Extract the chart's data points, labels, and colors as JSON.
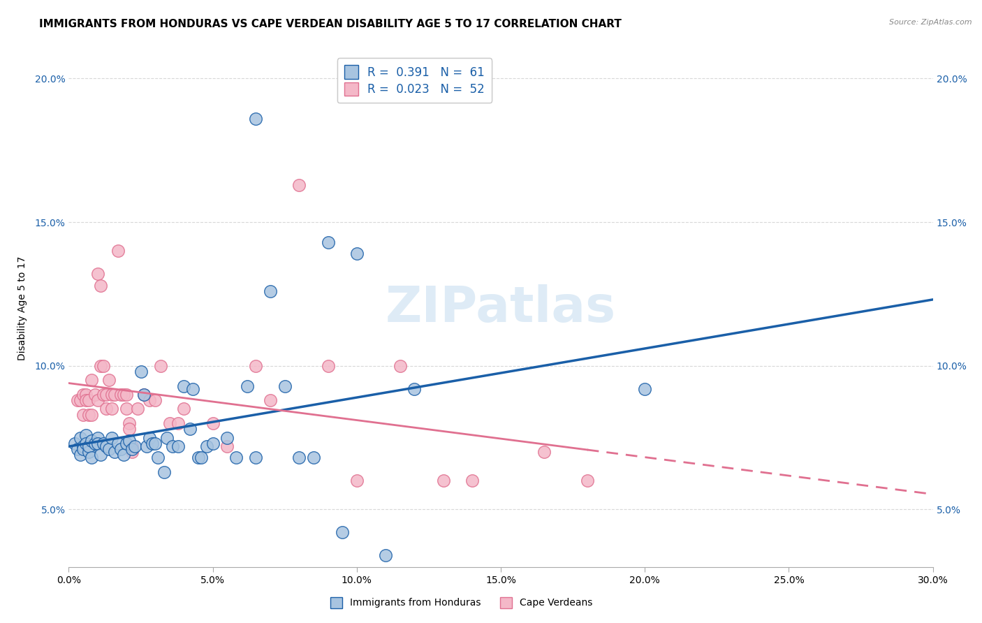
{
  "title": "IMMIGRANTS FROM HONDURAS VS CAPE VERDEAN DISABILITY AGE 5 TO 17 CORRELATION CHART",
  "source": "Source: ZipAtlas.com",
  "ylabel": "Disability Age 5 to 17",
  "xlim": [
    0.0,
    0.3
  ],
  "ylim": [
    0.03,
    0.21
  ],
  "xticks": [
    0.0,
    0.05,
    0.1,
    0.15,
    0.2,
    0.25,
    0.3
  ],
  "xticklabels": [
    "0.0%",
    "5.0%",
    "10.0%",
    "15.0%",
    "20.0%",
    "25.0%",
    "30.0%"
  ],
  "yticks": [
    0.05,
    0.1,
    0.15,
    0.2
  ],
  "yticklabels": [
    "5.0%",
    "10.0%",
    "15.0%",
    "20.0%"
  ],
  "legend1_r": "0.391",
  "legend1_n": "61",
  "legend2_r": "0.023",
  "legend2_n": "52",
  "color_honduras": "#a8c4e0",
  "color_capeverde": "#f4b8c8",
  "color_line_honduras": "#1a5fa8",
  "color_line_capeverde": "#e07090",
  "background_color": "#ffffff",
  "grid_color": "#d8d8d8",
  "watermark_color": "#c8dff0",
  "watermark": "ZIPatlas",
  "honduras_points": [
    [
      0.002,
      0.073
    ],
    [
      0.003,
      0.071
    ],
    [
      0.004,
      0.069
    ],
    [
      0.004,
      0.075
    ],
    [
      0.005,
      0.072
    ],
    [
      0.005,
      0.071
    ],
    [
      0.006,
      0.076
    ],
    [
      0.006,
      0.073
    ],
    [
      0.007,
      0.07
    ],
    [
      0.007,
      0.072
    ],
    [
      0.008,
      0.074
    ],
    [
      0.008,
      0.068
    ],
    [
      0.009,
      0.073
    ],
    [
      0.01,
      0.075
    ],
    [
      0.01,
      0.073
    ],
    [
      0.011,
      0.069
    ],
    [
      0.012,
      0.073
    ],
    [
      0.013,
      0.072
    ],
    [
      0.014,
      0.071
    ],
    [
      0.015,
      0.075
    ],
    [
      0.016,
      0.07
    ],
    [
      0.017,
      0.073
    ],
    [
      0.018,
      0.071
    ],
    [
      0.019,
      0.069
    ],
    [
      0.02,
      0.073
    ],
    [
      0.021,
      0.074
    ],
    [
      0.022,
      0.071
    ],
    [
      0.023,
      0.072
    ],
    [
      0.025,
      0.098
    ],
    [
      0.026,
      0.09
    ],
    [
      0.027,
      0.072
    ],
    [
      0.028,
      0.075
    ],
    [
      0.029,
      0.073
    ],
    [
      0.03,
      0.073
    ],
    [
      0.031,
      0.068
    ],
    [
      0.033,
      0.063
    ],
    [
      0.034,
      0.075
    ],
    [
      0.036,
      0.072
    ],
    [
      0.038,
      0.072
    ],
    [
      0.04,
      0.093
    ],
    [
      0.042,
      0.078
    ],
    [
      0.043,
      0.092
    ],
    [
      0.045,
      0.068
    ],
    [
      0.046,
      0.068
    ],
    [
      0.048,
      0.072
    ],
    [
      0.05,
      0.073
    ],
    [
      0.055,
      0.075
    ],
    [
      0.058,
      0.068
    ],
    [
      0.062,
      0.093
    ],
    [
      0.065,
      0.068
    ],
    [
      0.07,
      0.126
    ],
    [
      0.075,
      0.093
    ],
    [
      0.08,
      0.068
    ],
    [
      0.085,
      0.068
    ],
    [
      0.09,
      0.143
    ],
    [
      0.095,
      0.042
    ],
    [
      0.1,
      0.139
    ],
    [
      0.11,
      0.034
    ],
    [
      0.12,
      0.092
    ],
    [
      0.2,
      0.092
    ],
    [
      0.065,
      0.186
    ]
  ],
  "capeverde_points": [
    [
      0.003,
      0.088
    ],
    [
      0.004,
      0.088
    ],
    [
      0.005,
      0.09
    ],
    [
      0.005,
      0.083
    ],
    [
      0.006,
      0.09
    ],
    [
      0.006,
      0.088
    ],
    [
      0.007,
      0.088
    ],
    [
      0.007,
      0.083
    ],
    [
      0.008,
      0.095
    ],
    [
      0.008,
      0.083
    ],
    [
      0.009,
      0.09
    ],
    [
      0.01,
      0.088
    ],
    [
      0.01,
      0.132
    ],
    [
      0.011,
      0.128
    ],
    [
      0.011,
      0.1
    ],
    [
      0.012,
      0.09
    ],
    [
      0.012,
      0.1
    ],
    [
      0.013,
      0.09
    ],
    [
      0.013,
      0.085
    ],
    [
      0.014,
      0.095
    ],
    [
      0.015,
      0.09
    ],
    [
      0.015,
      0.085
    ],
    [
      0.016,
      0.09
    ],
    [
      0.017,
      0.14
    ],
    [
      0.018,
      0.09
    ],
    [
      0.019,
      0.09
    ],
    [
      0.02,
      0.085
    ],
    [
      0.02,
      0.09
    ],
    [
      0.021,
      0.08
    ],
    [
      0.021,
      0.078
    ],
    [
      0.022,
      0.072
    ],
    [
      0.022,
      0.07
    ],
    [
      0.024,
      0.085
    ],
    [
      0.026,
      0.09
    ],
    [
      0.028,
      0.088
    ],
    [
      0.03,
      0.088
    ],
    [
      0.032,
      0.1
    ],
    [
      0.035,
      0.08
    ],
    [
      0.038,
      0.08
    ],
    [
      0.04,
      0.085
    ],
    [
      0.05,
      0.08
    ],
    [
      0.055,
      0.072
    ],
    [
      0.065,
      0.1
    ],
    [
      0.07,
      0.088
    ],
    [
      0.08,
      0.163
    ],
    [
      0.09,
      0.1
    ],
    [
      0.1,
      0.06
    ],
    [
      0.115,
      0.1
    ],
    [
      0.13,
      0.06
    ],
    [
      0.14,
      0.06
    ],
    [
      0.165,
      0.07
    ],
    [
      0.18,
      0.06
    ]
  ],
  "title_fontsize": 11,
  "axis_fontsize": 10,
  "tick_fontsize": 10,
  "legend_fontsize": 12,
  "watermark_fontsize": 52
}
